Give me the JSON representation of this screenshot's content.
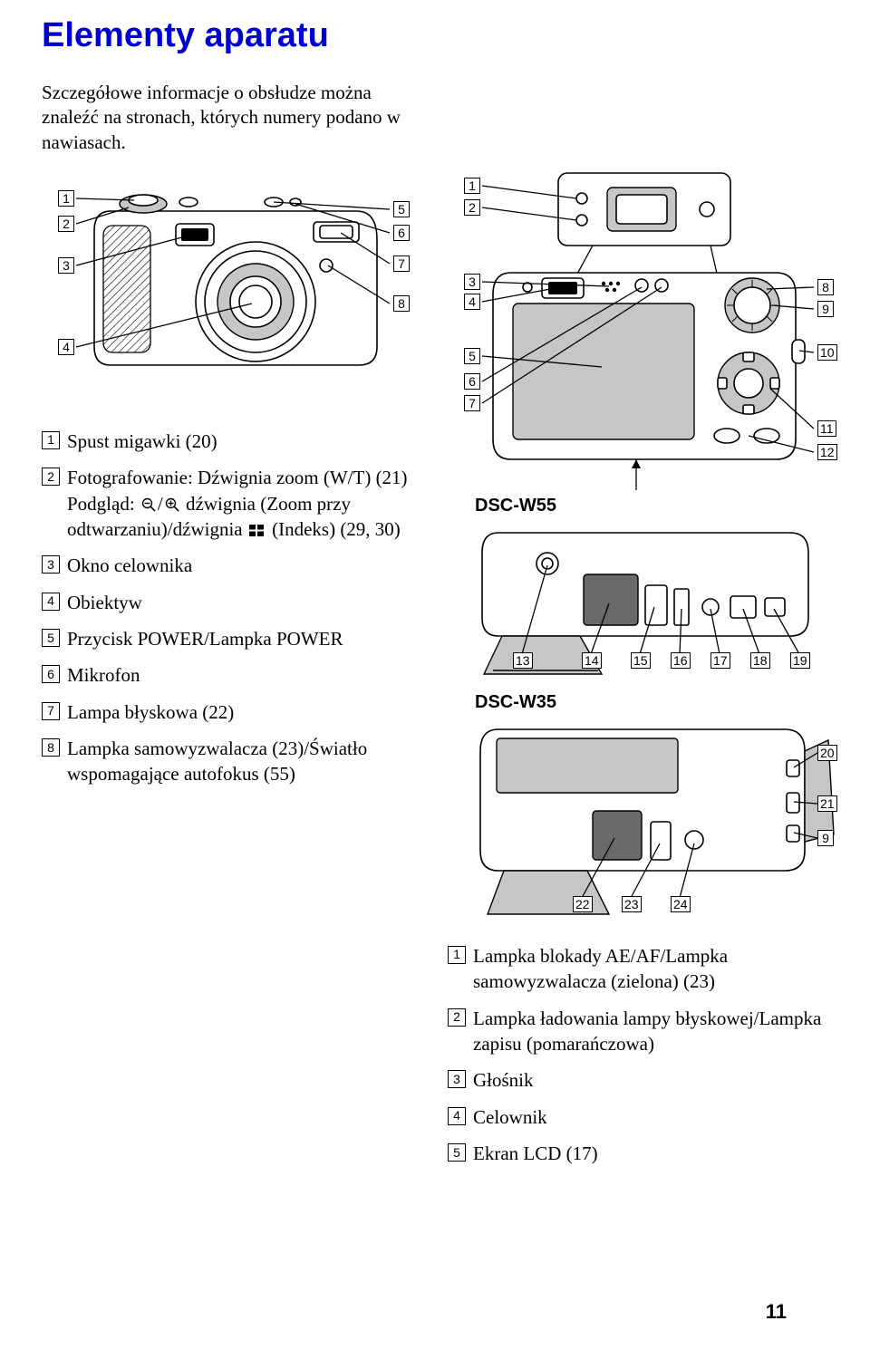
{
  "title": "Elementy aparatu",
  "intro": "Szczegółowe informacje o obsłudze można znaleźć na stronach, których numery podano w nawiasach.",
  "leftList": [
    {
      "n": "1",
      "text": "Spust migawki (20)"
    },
    {
      "n": "2",
      "text": "Fotografowanie: Dźwignia zoom (W/T) (21)\nPodgląd: [zoom-out]/[zoom-in] dźwignia (Zoom przy odtwarzaniu)/dźwignia [index] (Indeks) (29, 30)"
    },
    {
      "n": "3",
      "text": "Okno celownika"
    },
    {
      "n": "4",
      "text": "Obiektyw"
    },
    {
      "n": "5",
      "text": "Przycisk POWER/Lampka POWER"
    },
    {
      "n": "6",
      "text": "Mikrofon"
    },
    {
      "n": "7",
      "text": "Lampa błyskowa (22)"
    },
    {
      "n": "8",
      "text": "Lampka samowyzwalacza (23)/Światło wspomagające autofokus (55)"
    }
  ],
  "rightList": [
    {
      "n": "1",
      "text": "Lampka blokady AE/AF/Lampka samowyzwalacza (zielona) (23)"
    },
    {
      "n": "2",
      "text": "Lampka ładowania lampy błyskowej/Lampka zapisu (pomarańczowa)"
    },
    {
      "n": "3",
      "text": "Głośnik"
    },
    {
      "n": "4",
      "text": "Celownik"
    },
    {
      "n": "5",
      "text": "Ekran LCD (17)"
    }
  ],
  "models": {
    "a": "DSC-W55",
    "b": "DSC-W35"
  },
  "frontLabels": [
    "1",
    "2",
    "3",
    "4",
    "5",
    "6",
    "7",
    "8"
  ],
  "backLabelsLeft": [
    "1",
    "2",
    "3",
    "4",
    "5",
    "6",
    "7"
  ],
  "backLabelsRight": [
    "8",
    "9",
    "10",
    "11",
    "12"
  ],
  "w55BottomLabels": [
    "13",
    "14",
    "15",
    "16",
    "17",
    "18",
    "19"
  ],
  "w35Right": [
    "20",
    "21",
    "9"
  ],
  "w35Bottom": [
    "22",
    "23",
    "24"
  ],
  "pageNumber": "11",
  "colors": {
    "titleColor": "#0000d0",
    "bodyGrey": "#c6c6c6",
    "darkGrey": "#6a6a6a"
  },
  "icons": {
    "zoomOut": "magnifier-minus",
    "zoomIn": "magnifier-plus",
    "index": "index-grid"
  }
}
